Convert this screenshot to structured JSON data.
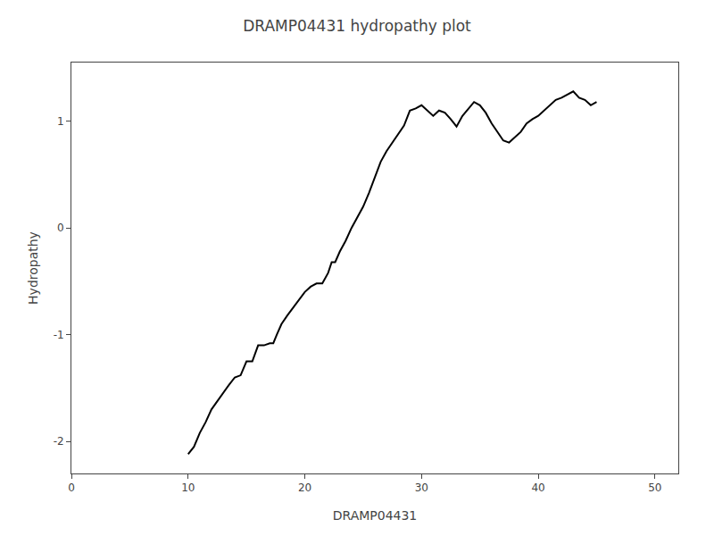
{
  "chart_data": {
    "type": "line",
    "title": "DRAMP04431 hydropathy plot",
    "xlabel": "DRAMP04431",
    "ylabel": "Hydropathy",
    "x": [
      10.0,
      10.5,
      11.0,
      11.5,
      12.0,
      12.5,
      13.0,
      13.5,
      14.0,
      14.5,
      15.0,
      15.5,
      16.0,
      16.5,
      17.0,
      17.3,
      17.6,
      18.0,
      18.5,
      19.0,
      19.5,
      20.0,
      20.5,
      21.0,
      21.5,
      22.0,
      22.3,
      22.6,
      23.0,
      23.5,
      24.0,
      24.5,
      25.0,
      25.5,
      26.0,
      26.5,
      27.0,
      27.5,
      28.0,
      28.5,
      29.0,
      29.5,
      30.0,
      30.5,
      31.0,
      31.5,
      32.0,
      32.5,
      33.0,
      33.5,
      34.0,
      34.5,
      35.0,
      35.5,
      36.0,
      36.5,
      37.0,
      37.5,
      38.0,
      38.5,
      39.0,
      39.5,
      40.0,
      40.5,
      41.0,
      41.5,
      42.0,
      42.5,
      43.0,
      43.5,
      44.0,
      44.5,
      45.0
    ],
    "values": [
      -2.12,
      -2.05,
      -1.92,
      -1.82,
      -1.7,
      -1.62,
      -1.55,
      -1.47,
      -1.4,
      -1.38,
      -1.25,
      -1.25,
      -1.1,
      -1.1,
      -1.08,
      -1.08,
      -1.0,
      -0.9,
      -0.82,
      -0.75,
      -0.68,
      -0.6,
      -0.55,
      -0.52,
      -0.52,
      -0.42,
      -0.32,
      -0.32,
      -0.22,
      -0.12,
      0.0,
      0.1,
      0.2,
      0.33,
      0.48,
      0.62,
      0.72,
      0.8,
      0.88,
      0.96,
      1.1,
      1.12,
      1.15,
      1.1,
      1.05,
      1.1,
      1.08,
      1.02,
      0.95,
      1.05,
      1.12,
      1.18,
      1.15,
      1.08,
      0.98,
      0.9,
      0.82,
      0.8,
      0.85,
      0.9,
      0.98,
      1.02,
      1.05,
      1.1,
      1.15,
      1.2,
      1.22,
      1.25,
      1.28,
      1.22,
      1.2,
      1.15,
      1.18
    ],
    "color": "#000000",
    "xlim": [
      0,
      52
    ],
    "ylim": [
      -2.3,
      1.55
    ],
    "xticks": [
      0,
      10,
      20,
      30,
      40,
      50
    ],
    "yticks": [
      -2,
      -1,
      0,
      1
    ],
    "grid": false
  }
}
